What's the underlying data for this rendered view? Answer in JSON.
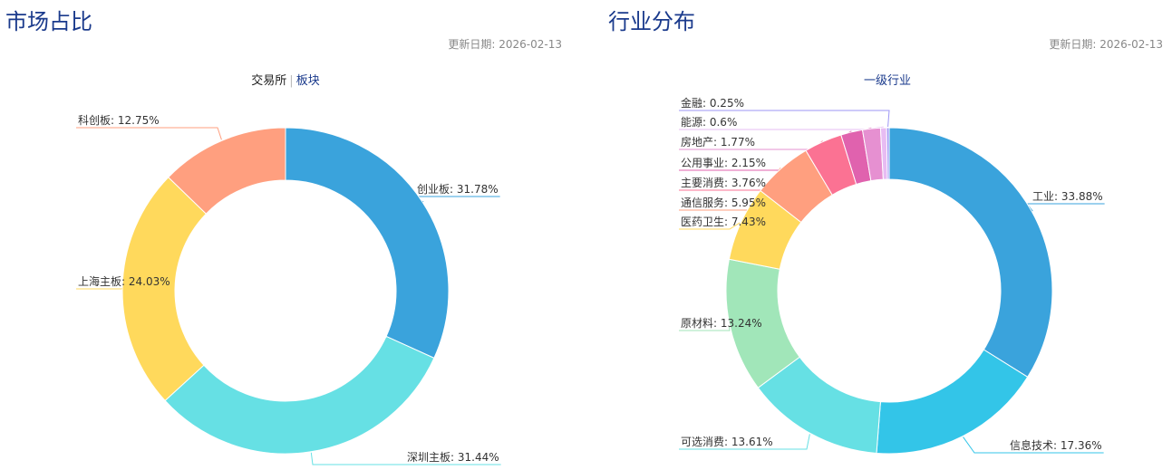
{
  "left_panel": {
    "title": "市场占比",
    "update_date": "更新日期: 2026-02-13",
    "tabs": [
      {
        "label": "交易所",
        "active": true
      },
      {
        "label": "板块",
        "active": false
      }
    ]
  },
  "right_panel": {
    "title": "行业分布",
    "update_date": "更新日期: 2026-02-13",
    "subtitle": "一级行业"
  },
  "chart_data": [
    {
      "type": "pie",
      "donut": true,
      "title": "",
      "categories": [
        "创业板",
        "深圳主板",
        "上海主板",
        "科创板"
      ],
      "values": [
        31.78,
        31.44,
        24.03,
        12.75
      ],
      "unit": "%",
      "colors": [
        "#3aa3dc",
        "#66e0e4",
        "#ffd95c",
        "#ff9f7f"
      ],
      "legend": "none"
    },
    {
      "type": "pie",
      "donut": true,
      "title": "一级行业",
      "categories": [
        "工业",
        "信息技术",
        "可选消费",
        "原材料",
        "医药卫生",
        "通信服务",
        "主要消费",
        "公用事业",
        "房地产",
        "能源",
        "金融"
      ],
      "values": [
        33.88,
        17.36,
        13.61,
        13.24,
        7.43,
        5.95,
        3.76,
        2.15,
        1.77,
        0.6,
        0.25
      ],
      "unit": "%",
      "colors": [
        "#3aa3dc",
        "#33c5e8",
        "#66e0e4",
        "#a1e6b9",
        "#ffd95c",
        "#ff9f7f",
        "#fb7293",
        "#e062ae",
        "#e690d1",
        "#e7bcf3",
        "#9d96f5"
      ],
      "legend": "none"
    }
  ]
}
